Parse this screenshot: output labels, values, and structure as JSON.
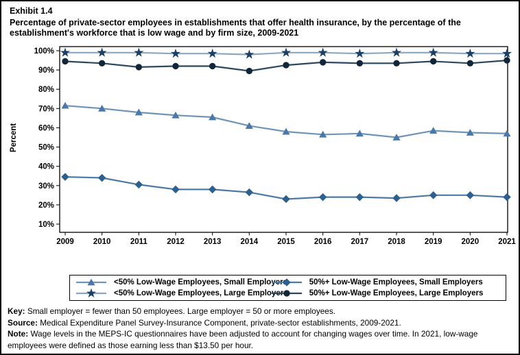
{
  "header": {
    "exhibit": "Exhibit 1.4",
    "title": "Percentage of private-sector employees in establishments that offer health insurance, by the percentage of the establishment's workforce that is low wage and by firm size,  2009-2021"
  },
  "chart_data": {
    "type": "line",
    "x": [
      2009,
      2010,
      2011,
      2012,
      2013,
      2014,
      2015,
      2016,
      2017,
      2018,
      2019,
      2020,
      2021
    ],
    "ylabel": "Percent",
    "ylim": [
      10,
      100
    ],
    "ytick_step": 10,
    "ytick_suffix": "%",
    "grid": false,
    "legend_position": "bottom",
    "series": [
      {
        "name": "<50% Low-Wage Employees, Small Employers",
        "marker": "triangle",
        "color": "#4a79a9",
        "line_color": "#6f94b8",
        "values": [
          71.5,
          70,
          68,
          66.5,
          65.5,
          61,
          58,
          56.5,
          57,
          55,
          58.5,
          57.5,
          57
        ]
      },
      {
        "name": "<50% Low-Wage Employees, Large Employers",
        "marker": "star",
        "color": "#1c3f66",
        "line_color": "#8aa7c1",
        "values": [
          99,
          99,
          99,
          98.5,
          98.5,
          98,
          99,
          99,
          98.5,
          99,
          99,
          98.5,
          98.5
        ]
      },
      {
        "name": "50%+ Low-Wage Employees, Small Employers",
        "marker": "diamond",
        "color": "#2e608f",
        "line_color": "#4d7aa5",
        "values": [
          34.5,
          34,
          30.5,
          28,
          28,
          26.5,
          23,
          24,
          24,
          23.5,
          25,
          25,
          24
        ]
      },
      {
        "name": "50%+ Low-Wage Employees, Large Employers",
        "marker": "circle",
        "color": "#112639",
        "line_color": "#2a4760",
        "values": [
          94.5,
          93.5,
          91.5,
          92,
          92,
          89.5,
          92.5,
          94,
          93.5,
          93.5,
          94.5,
          93.5,
          95
        ]
      }
    ]
  },
  "footer": {
    "key_label": "Key:",
    "key_text": "Small employer = fewer than 50 employees. Large employer = 50 or more employees.",
    "source_label": "Source:",
    "source_text": "Medical Expenditure Panel Survey-Insurance Component, private-sector establishments, 2009-2021.",
    "note_label": "Note:",
    "note_text": "Wage levels in the MEPS-IC questionnaires have been adjusted to account for changing wages over time. In 2021, low-wage employees were defined as those earning less than $13.50 per hour."
  }
}
